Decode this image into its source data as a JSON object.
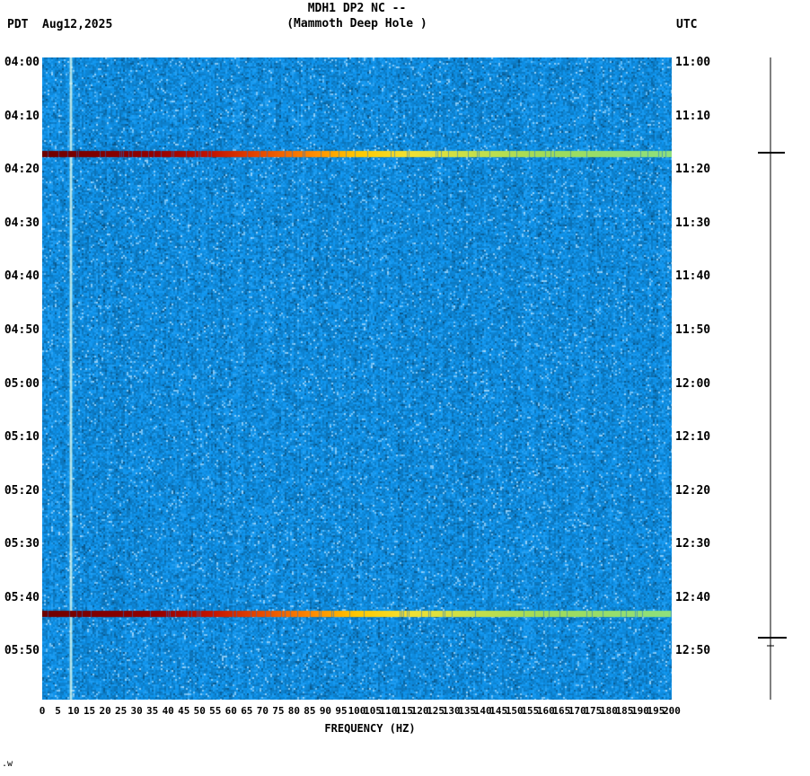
{
  "header": {
    "title": "MDH1 DP2 NC --",
    "subtitle": "(Mammoth Deep Hole )",
    "tz_left": "PDT",
    "date": "Aug12,2025",
    "tz_right": "UTC"
  },
  "axes": {
    "left_ticks": [
      "04:00",
      "04:10",
      "04:20",
      "04:30",
      "04:40",
      "04:50",
      "05:00",
      "05:10",
      "05:20",
      "05:30",
      "05:40",
      "05:50"
    ],
    "right_ticks": [
      "11:00",
      "11:10",
      "11:20",
      "11:30",
      "11:40",
      "11:50",
      "12:00",
      "12:10",
      "12:20",
      "12:30",
      "12:40",
      "12:50"
    ],
    "x_ticks": [
      "0",
      "5",
      "10",
      "15",
      "20",
      "25",
      "30",
      "35",
      "40",
      "45",
      "50",
      "55",
      "60",
      "65",
      "70",
      "75",
      "80",
      "85",
      "90",
      "95",
      "100",
      "105",
      "110",
      "115",
      "120",
      "125",
      "130",
      "135",
      "140",
      "145",
      "150",
      "155",
      "160",
      "165",
      "170",
      "175",
      "180",
      "185",
      "190",
      "195",
      "200"
    ],
    "xlabel": "FREQUENCY (HZ)"
  },
  "footer_mark": ".w",
  "chart_data": {
    "type": "heatmap",
    "title": "MDH1 DP2 NC -- (Mammoth Deep Hole )",
    "xlabel": "FREQUENCY (HZ)",
    "x_range_hz": [
      0,
      200
    ],
    "x_tick_step_hz": 5,
    "y_axis_left": {
      "timezone": "PDT",
      "date": "Aug12,2025",
      "start": "04:00",
      "end": "06:00",
      "tick_interval_min": 10
    },
    "y_axis_right": {
      "timezone": "UTC",
      "start": "11:00",
      "end": "13:00",
      "tick_interval_min": 10
    },
    "background_character": "low-amplitude broadband blue noise",
    "calibration_line_hz": 8.8,
    "events": [
      {
        "time_pdt": "04:18",
        "time_utc": "11:18",
        "y_fraction": 0.149,
        "description": "broadband energy burst across 0-200 Hz, strongest (dark red) below ~50 Hz fading to yellow-green at high frequencies"
      },
      {
        "time_pdt": "05:43",
        "time_utc": "12:43",
        "y_fraction": 0.866,
        "description": "broadband energy burst across 0-200 Hz, strongest (dark red) below ~60 Hz fading to yellow-green at high frequencies"
      }
    ],
    "event_gradient": [
      {
        "at": 0.0,
        "color": "#6e0000"
      },
      {
        "at": 0.18,
        "color": "#930000"
      },
      {
        "at": 0.27,
        "color": "#c41400"
      },
      {
        "at": 0.35,
        "color": "#e84d00"
      },
      {
        "at": 0.43,
        "color": "#ff8c00"
      },
      {
        "at": 0.5,
        "color": "#ffc800"
      },
      {
        "at": 0.58,
        "color": "#f2e133"
      },
      {
        "at": 0.68,
        "color": "#c8e04a"
      },
      {
        "at": 0.8,
        "color": "#9fdc5a"
      },
      {
        "at": 1.0,
        "color": "#8ee07e"
      }
    ],
    "noise_palette": {
      "hue": 204,
      "sat": 88,
      "lightness_range": [
        38,
        62
      ]
    }
  }
}
